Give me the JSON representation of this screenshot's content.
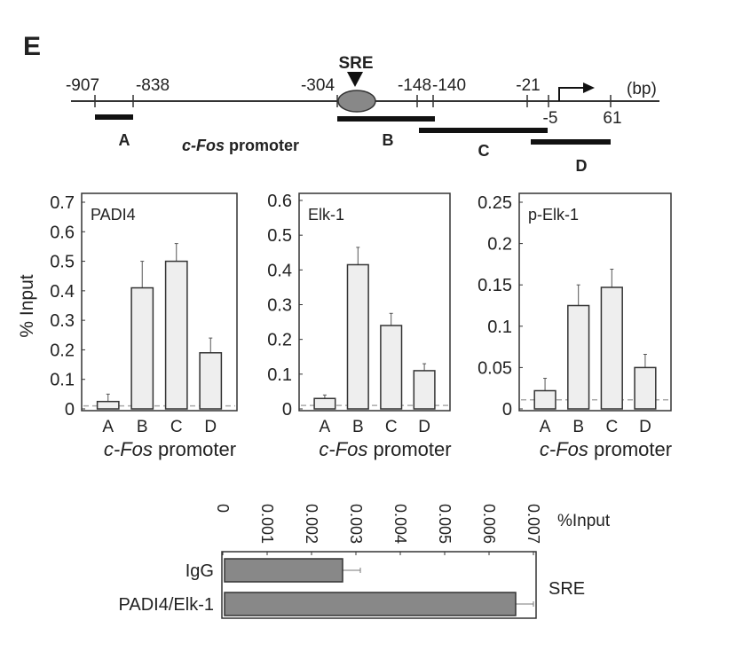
{
  "panel_label": "E",
  "diagram": {
    "units": "(bp)",
    "element": "SRE",
    "promoter_label_italic": "c-Fos",
    "promoter_label_rest": " promoter",
    "top_ticks": [
      "-907",
      "-838",
      "-304",
      "-148",
      "-140",
      "-21"
    ],
    "bottom_ticks": [
      "-5",
      "61"
    ],
    "regions": [
      "A",
      "B",
      "C",
      "D"
    ]
  },
  "chart_data": [
    {
      "type": "bar",
      "title": "PADI4",
      "ylabel": "% Input",
      "xlabel_italic": "c-Fos",
      "xlabel_rest": " promoter",
      "categories": [
        "A",
        "B",
        "C",
        "D"
      ],
      "values": [
        0.025,
        0.41,
        0.5,
        0.19
      ],
      "error": [
        0.025,
        0.09,
        0.06,
        0.05
      ],
      "baseline": 0.01,
      "ylim": [
        0,
        0.7
      ],
      "yticks": [
        "0",
        "0.1",
        "0.2",
        "0.3",
        "0.4",
        "0.5",
        "0.6",
        "0.7"
      ]
    },
    {
      "type": "bar",
      "title": "Elk-1",
      "xlabel_italic": "c-Fos",
      "xlabel_rest": " promoter",
      "categories": [
        "A",
        "B",
        "C",
        "D"
      ],
      "values": [
        0.03,
        0.415,
        0.24,
        0.11
      ],
      "error": [
        0.01,
        0.05,
        0.035,
        0.02
      ],
      "baseline": 0.01,
      "ylim": [
        0,
        0.6
      ],
      "yticks": [
        "0",
        "0.1",
        "0.2",
        "0.3",
        "0.4",
        "0.5",
        "0.6"
      ]
    },
    {
      "type": "bar",
      "title": "p-Elk-1",
      "xlabel_italic": "c-Fos",
      "xlabel_rest": " promoter",
      "categories": [
        "A",
        "B",
        "C",
        "D"
      ],
      "values": [
        0.022,
        0.125,
        0.147,
        0.05
      ],
      "error": [
        0.015,
        0.025,
        0.022,
        0.016
      ],
      "baseline": 0.011,
      "ylim": [
        0,
        0.25
      ],
      "yticks": [
        "0",
        "0.05",
        "0.1",
        "0.15",
        "0.2",
        "0.25"
      ]
    },
    {
      "type": "bar",
      "orientation": "horizontal",
      "xlabel": "%Input",
      "group_label": "SRE",
      "categories": [
        "IgG",
        "PADI4/Elk-1"
      ],
      "values": [
        0.0027,
        0.0066
      ],
      "error": [
        0.0004,
        0.0004
      ],
      "xlim": [
        0,
        0.007
      ],
      "xticks": [
        "0",
        "0.001",
        "0.002",
        "0.003",
        "0.004",
        "0.005",
        "0.006",
        "0.007"
      ]
    }
  ]
}
